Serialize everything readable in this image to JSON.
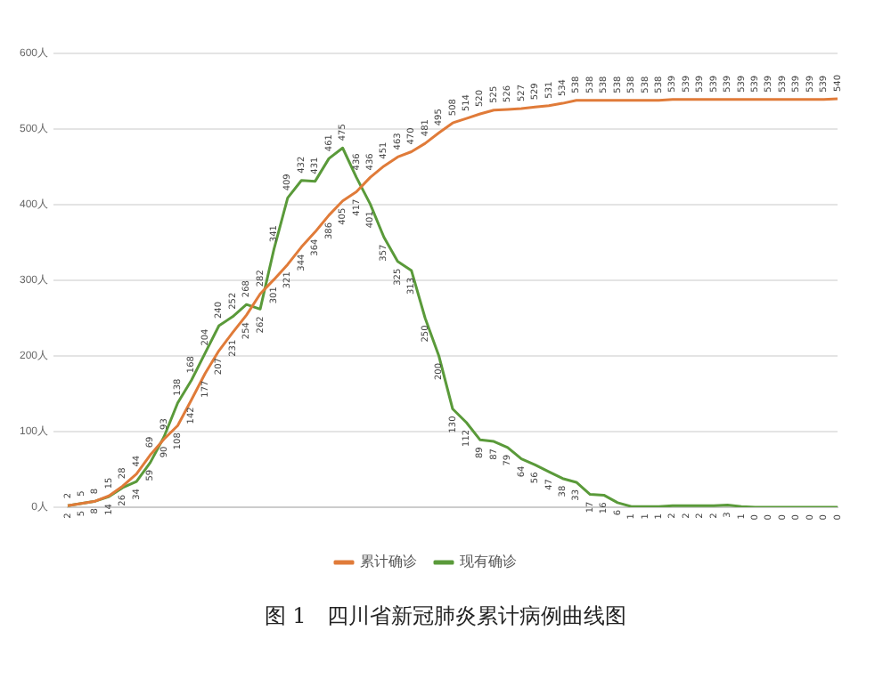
{
  "chart_data": {
    "type": "line",
    "categories": [
      null,
      null,
      null,
      null,
      null,
      null,
      null,
      null,
      null,
      null,
      null,
      null,
      null,
      null,
      null,
      null,
      null,
      null,
      null,
      null,
      null,
      null,
      null,
      null,
      null,
      null,
      null,
      null,
      null,
      null,
      null,
      null,
      null,
      null,
      null,
      null,
      null,
      null,
      null,
      null,
      null,
      null,
      null,
      null,
      null,
      null,
      null,
      null,
      null,
      null,
      null,
      null,
      null,
      null,
      null,
      null,
      null
    ],
    "series": [
      {
        "name": "累计确诊",
        "color": "#e07b39",
        "values": [
          2,
          5,
          8,
          15,
          28,
          44,
          69,
          90,
          108,
          142,
          177,
          207,
          231,
          254,
          282,
          301,
          321,
          344,
          364,
          386,
          405,
          417,
          436,
          451,
          463,
          470,
          481,
          495,
          508,
          514,
          520,
          525,
          526,
          527,
          529,
          531,
          534,
          538,
          538,
          538,
          538,
          538,
          538,
          538,
          539,
          539,
          539,
          539,
          539,
          539,
          539,
          539,
          539,
          539,
          539,
          539,
          540
        ]
      },
      {
        "name": "现有确诊",
        "color": "#5a9a3a",
        "values": [
          2,
          5,
          8,
          14,
          26,
          34,
          59,
          93,
          138,
          168,
          204,
          240,
          252,
          268,
          262,
          341,
          409,
          432,
          431,
          461,
          475,
          436,
          401,
          357,
          325,
          313,
          250,
          200,
          130,
          112,
          89,
          87,
          79,
          64,
          56,
          47,
          38,
          33,
          17,
          16,
          6,
          1,
          1,
          1,
          2,
          2,
          2,
          2,
          3,
          1,
          0,
          0,
          0,
          0,
          0,
          0,
          0
        ]
      }
    ],
    "ylim": [
      0,
      600
    ],
    "yticks": [
      {
        "value": 0,
        "label": "0人"
      },
      {
        "value": 100,
        "label": "100人"
      },
      {
        "value": 200,
        "label": "200人"
      },
      {
        "value": 300,
        "label": "300人"
      },
      {
        "value": 400,
        "label": "400人"
      },
      {
        "value": 500,
        "label": "500人"
      },
      {
        "value": 600,
        "label": "600人"
      }
    ],
    "grid": "y",
    "legend": "bottom",
    "marker": "none",
    "line_style": "solid",
    "data_labels": true,
    "annotations": [
      "图 1　四川省新冠肺炎累计病例曲线图"
    ]
  }
}
